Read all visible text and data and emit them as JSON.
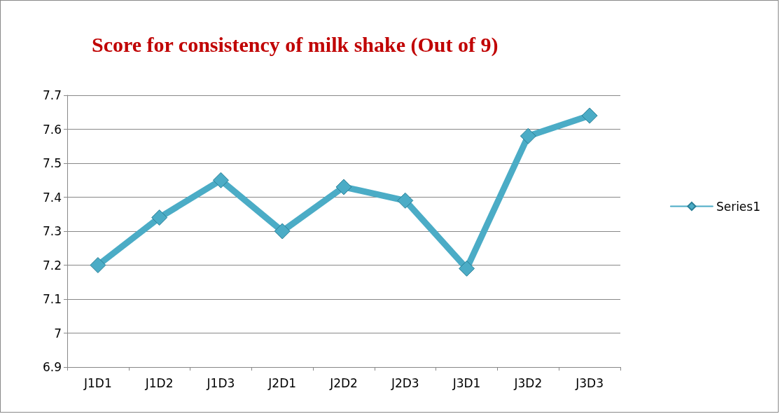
{
  "chart_data": {
    "type": "line",
    "title": "Score for consistency of milk shake (Out of 9)",
    "categories": [
      "J1D1",
      "J1D2",
      "J1D3",
      "J2D1",
      "J2D2",
      "J2D3",
      "J3D1",
      "J3D2",
      "J3D3"
    ],
    "series": [
      {
        "name": "Series1",
        "color": "#4bacc6",
        "values": [
          7.2,
          7.34,
          7.45,
          7.3,
          7.43,
          7.39,
          7.19,
          7.58,
          7.64
        ]
      }
    ],
    "ylim": [
      6.9,
      7.7
    ],
    "yticks": [
      6.9,
      7,
      7.1,
      7.2,
      7.3,
      7.4,
      7.5,
      7.6,
      7.7
    ],
    "grid": "y",
    "legend": "right",
    "marker": "diamond",
    "line_style": "solid"
  }
}
